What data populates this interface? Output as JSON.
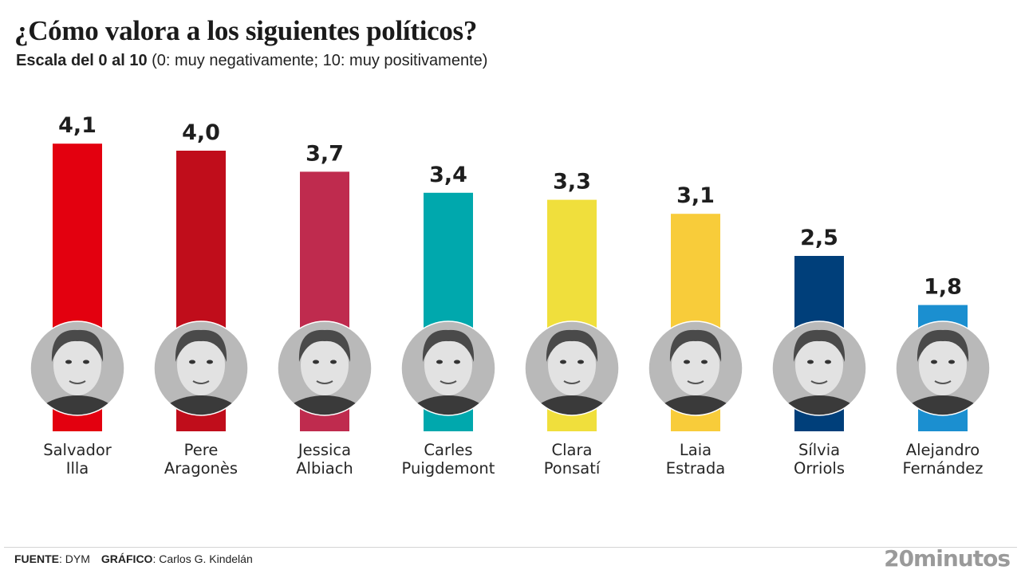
{
  "header": {
    "title": "¿Cómo valora a los siguientes políticos?",
    "subtitle_bold": "Escala del 0 al 10",
    "subtitle_rest": " (0: muy negativamente; 10: muy positivamente)"
  },
  "chart_data": {
    "type": "bar",
    "title": "¿Cómo valora a los siguientes políticos?",
    "subtitle": "Escala del 0 al 10 (0: muy negativamente; 10: muy positivamente)",
    "xlabel": "",
    "ylabel": "",
    "ylim": [
      0,
      10
    ],
    "grid": false,
    "legend": "none",
    "categories": [
      [
        "Salvador",
        "Illa"
      ],
      [
        "Pere",
        "Aragonès"
      ],
      [
        "Jessica",
        "Albiach"
      ],
      [
        "Carles",
        "Puigdemont"
      ],
      [
        "Clara",
        "Ponsatí"
      ],
      [
        "Laia",
        "Estrada"
      ],
      [
        "Sílvia",
        "Orriols"
      ],
      [
        "Alejandro",
        "Fernández"
      ]
    ],
    "values": [
      4.1,
      4.0,
      3.7,
      3.4,
      3.3,
      3.1,
      2.5,
      1.8
    ],
    "value_labels": [
      "4,1",
      "4,0",
      "3,7",
      "3,4",
      "3,3",
      "3,1",
      "2,5",
      "1,8"
    ],
    "colors": [
      "#e3000f",
      "#c00d1b",
      "#bf2b4e",
      "#00a8ad",
      "#f0df3c",
      "#f8cc3a",
      "#003f7a",
      "#1b8fd0"
    ],
    "images": [
      "portrait-photo",
      "portrait-photo",
      "portrait-photo",
      "portrait-photo",
      "portrait-photo",
      "portrait-photo",
      "portrait-photo",
      "portrait-photo"
    ]
  },
  "footer": {
    "source_label": "FUENTE",
    "source_value": ": DYM",
    "graphic_label": "GRÁFICO",
    "graphic_value": ": Carlos G. Kindelán",
    "brand": "20minutos"
  }
}
